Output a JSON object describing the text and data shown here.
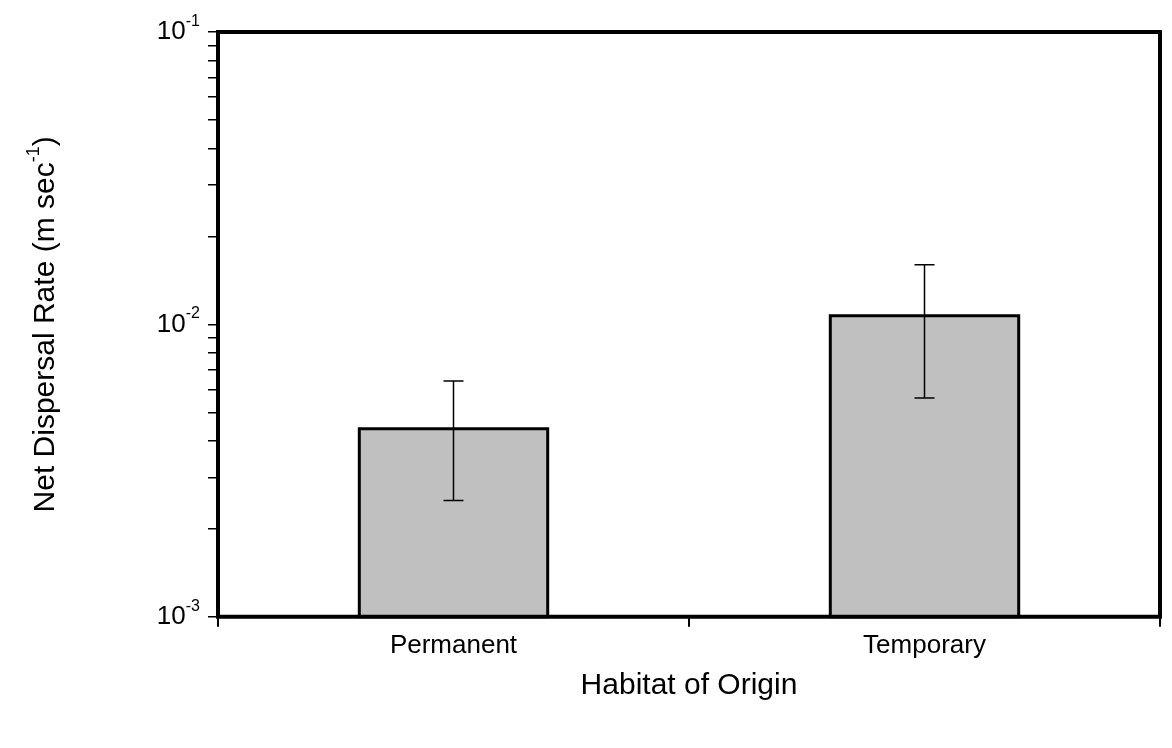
{
  "chart_data": {
    "type": "bar",
    "xlabel": "Habitat of Origin",
    "ylabel": "Net Dispersal Rate (m sec$^{-1}$)",
    "categories": [
      "Permanent",
      "Temporary"
    ],
    "values": [
      0.0044,
      0.0107
    ],
    "errors": [
      [
        0.0025,
        0.0064
      ],
      [
        0.0056,
        0.016
      ]
    ],
    "color": "#c0c0c0",
    "log": true,
    "ylim": [
      0.001,
      0.1
    ],
    "yticks": [
      {
        "value": 0.001,
        "label": "10$^{-3}$"
      },
      {
        "value": 0.002,
        "label": null
      },
      {
        "value": 0.003,
        "label": null
      },
      {
        "value": 0.004,
        "label": null
      },
      {
        "value": 0.005,
        "label": null
      },
      {
        "value": 0.006,
        "label": null
      },
      {
        "value": 0.007,
        "label": null
      },
      {
        "value": 0.008,
        "label": null
      },
      {
        "value": 0.009,
        "label": null
      },
      {
        "value": 0.01,
        "label": "10$^{-2}$"
      },
      {
        "value": 0.02,
        "label": null
      },
      {
        "value": 0.03,
        "label": null
      },
      {
        "value": 0.04,
        "label": null
      },
      {
        "value": 0.05,
        "label": null
      },
      {
        "value": 0.06,
        "label": null
      },
      {
        "value": 0.07,
        "label": null
      },
      {
        "value": 0.08,
        "label": null
      },
      {
        "value": 0.09,
        "label": null
      },
      {
        "value": 0.1,
        "label": "10$^{-1}$"
      }
    ],
    "grid": false,
    "legend": false
  }
}
